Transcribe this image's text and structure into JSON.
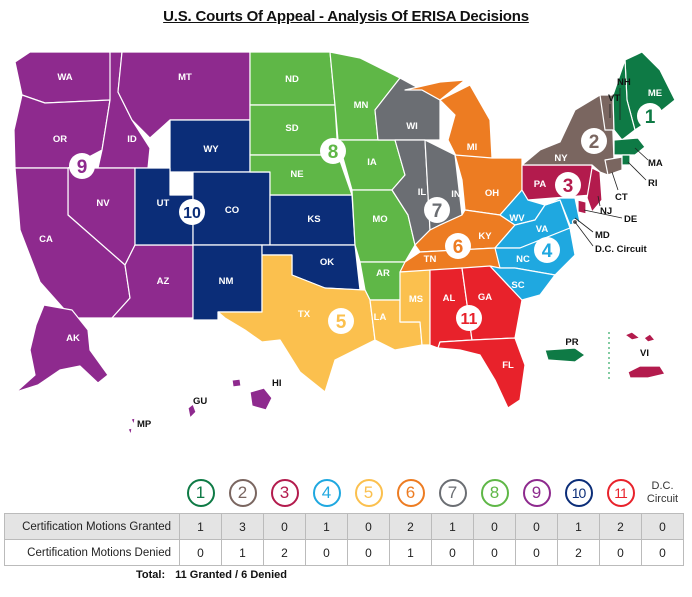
{
  "title": "U.S. Courts Of Appeal - Analysis Of ERISA Decisions",
  "colors": {
    "1": "#0e7a45",
    "2": "#7a6660",
    "3": "#b31b4d",
    "4": "#1fa8e0",
    "5": "#fbc04e",
    "6": "#ed7c22",
    "7": "#6b6e73",
    "8": "#5fb747",
    "9": "#8e2a8e",
    "10": "#0b2d78",
    "11": "#e8222b",
    "dc": "#555555"
  },
  "state_labels": {
    "WA": "WA",
    "OR": "OR",
    "CA": "CA",
    "NV": "NV",
    "ID": "ID",
    "MT": "MT",
    "AZ": "AZ",
    "AK": "AK",
    "HI": "HI",
    "GU": "GU",
    "MP": "MP",
    "WY": "WY",
    "UT": "UT",
    "CO": "CO",
    "NM": "NM",
    "KS": "KS",
    "OK": "OK",
    "ND": "ND",
    "SD": "SD",
    "NE": "NE",
    "MN": "MN",
    "IA": "IA",
    "MO": "MO",
    "AR": "AR",
    "WI": "WI",
    "IL": "IL",
    "IN": "IN",
    "MI": "MI",
    "OH": "OH",
    "KY": "KY",
    "TN": "TN",
    "TX": "TX",
    "LA": "LA",
    "MS": "MS",
    "AL": "AL",
    "GA": "GA",
    "FL": "FL",
    "WV": "WV",
    "VA": "VA",
    "NC": "NC",
    "SC": "SC",
    "MD": "MD",
    "PA": "PA",
    "NJ": "NJ",
    "DE": "DE",
    "NY": "NY",
    "VT": "VT",
    "CT": "CT",
    "NH": "NH",
    "ME": "ME",
    "MA": "MA",
    "RI": "RI",
    "PR": "PR",
    "VI": "VI",
    "DC": "D.C. Circuit"
  },
  "map_circuit_numbers": [
    "1",
    "2",
    "3",
    "4",
    "5",
    "6",
    "7",
    "8",
    "9",
    "10",
    "11"
  ],
  "table": {
    "headers": [
      "1",
      "2",
      "3",
      "4",
      "5",
      "6",
      "7",
      "8",
      "9",
      "10",
      "11",
      "D.C. Circuit"
    ],
    "rows": [
      {
        "label": "Certification Motions Granted",
        "values": [
          "1",
          "3",
          "0",
          "1",
          "0",
          "2",
          "1",
          "0",
          "0",
          "1",
          "2",
          "0"
        ]
      },
      {
        "label": "Certification Motions Denied",
        "values": [
          "0",
          "1",
          "2",
          "0",
          "0",
          "1",
          "0",
          "0",
          "0",
          "2",
          "0",
          "0"
        ]
      }
    ]
  },
  "total": {
    "label": "Total:",
    "value": "11 Granted / 6 Denied"
  }
}
